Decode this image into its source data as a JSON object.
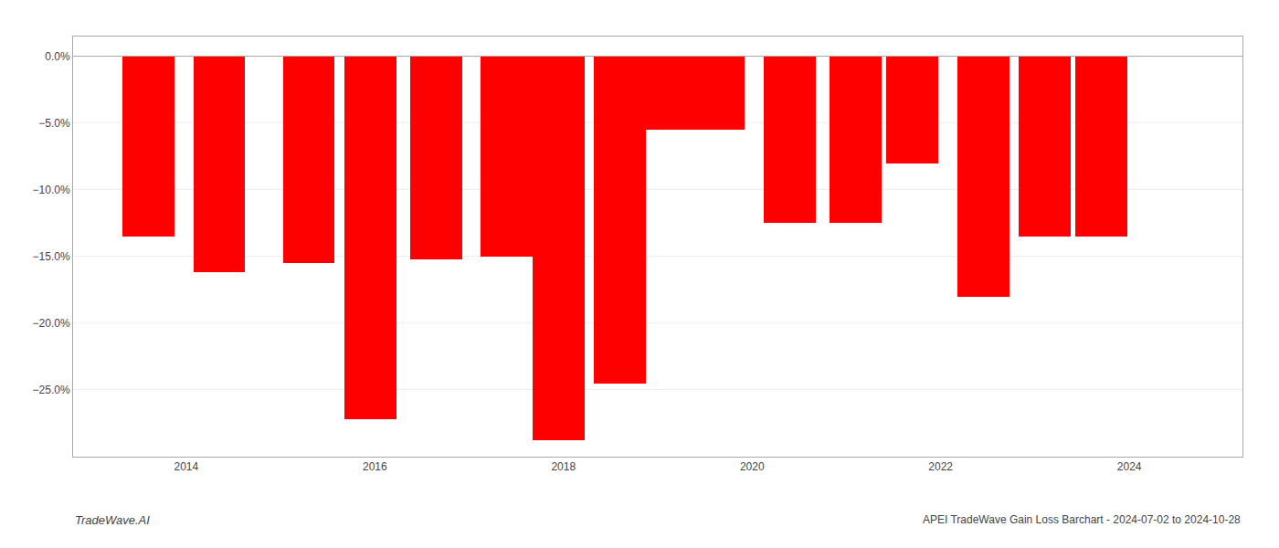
{
  "chart_data": {
    "type": "bar",
    "x": [
      2013.6,
      2014.35,
      2015.3,
      2015.95,
      2016.65,
      2017.4,
      2017.95,
      2018.6,
      2019.1,
      2019.65,
      2020.4,
      2021.1,
      2021.7,
      2022.45,
      2023.1,
      2023.7
    ],
    "values": [
      -13.5,
      -16.2,
      -15.5,
      -27.2,
      -15.2,
      -15.0,
      -28.8,
      -24.5,
      -5.5,
      -5.5,
      -12.5,
      -12.5,
      -8.0,
      -18.0,
      -13.5,
      -13.5
    ],
    "color": "#ff0000",
    "xlim": [
      2012.8,
      2025.2
    ],
    "xticks": [
      2014,
      2016,
      2018,
      2020,
      2022,
      2024
    ],
    "ylim": [
      -30,
      1.5
    ],
    "yticks": [
      {
        "value": 0.0,
        "label": "0.0%"
      },
      {
        "value": -5.0,
        "label": "−5.0%"
      },
      {
        "value": -10.0,
        "label": "−10.0%"
      },
      {
        "value": -15.0,
        "label": "−15.0%"
      },
      {
        "value": -20.0,
        "label": "−20.0%"
      },
      {
        "value": -25.0,
        "label": "−25.0%"
      }
    ],
    "grid": "y",
    "annotations": [
      "TradeWave.AI",
      "APEI TradeWave Gain Loss Barchart - 2024-07-02 to 2024-10-28"
    ]
  }
}
